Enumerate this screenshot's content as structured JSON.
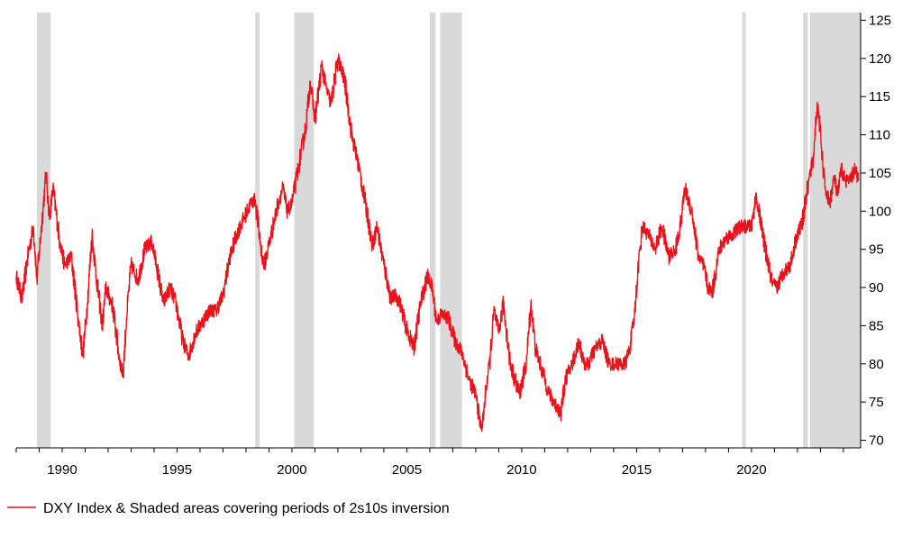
{
  "chart_data": {
    "type": "line",
    "title": "",
    "xlabel": "",
    "ylabel": "",
    "xlim": [
      1988.0,
      2024.75
    ],
    "ylim": [
      69,
      126
    ],
    "y_axis_side": "right",
    "grid": false,
    "x_ticks": [
      1990,
      1995,
      2000,
      2005,
      2010,
      2015,
      2020
    ],
    "x_tick_labels": [
      "1990",
      "1995",
      "2000",
      "2005",
      "2010",
      "2015",
      "2020"
    ],
    "y_ticks": [
      70,
      75,
      80,
      85,
      90,
      95,
      100,
      105,
      110,
      115,
      120,
      125
    ],
    "y_tick_labels": [
      "70",
      "75",
      "80",
      "85",
      "90",
      "95",
      "100",
      "105",
      "110",
      "115",
      "120",
      "125"
    ],
    "legend": {
      "placement": "bottom-left",
      "entries": [
        {
          "label": "DXY Index & Shaded areas covering periods of 2s10s inversion",
          "color": "#e8141c"
        }
      ]
    },
    "shaded_periods": [
      [
        1988.9,
        1989.5
      ],
      [
        1998.4,
        1998.6
      ],
      [
        2000.1,
        2000.95
      ],
      [
        2006.0,
        2006.25
      ],
      [
        2006.45,
        2007.4
      ],
      [
        2019.6,
        2019.75
      ],
      [
        2022.25,
        2022.45
      ],
      [
        2022.55,
        2024.75
      ]
    ],
    "shade_color": "#d9d9d9",
    "series": [
      {
        "name": "DXY Index",
        "color": "#e8141c",
        "x": [
          1988.0,
          1988.25,
          1988.5,
          1988.75,
          1988.9,
          1989.1,
          1989.3,
          1989.45,
          1989.6,
          1989.9,
          1990.1,
          1990.4,
          1990.7,
          1990.9,
          1991.1,
          1991.3,
          1991.5,
          1991.75,
          1991.9,
          1992.2,
          1992.5,
          1992.65,
          1992.8,
          1993.0,
          1993.3,
          1993.6,
          1993.9,
          1994.1,
          1994.4,
          1994.7,
          1994.95,
          1995.25,
          1995.5,
          1995.8,
          1996.1,
          1996.4,
          1996.7,
          1997.0,
          1997.3,
          1997.6,
          1997.9,
          1998.2,
          1998.4,
          1998.7,
          1998.8,
          1999.1,
          1999.4,
          1999.6,
          1999.8,
          2000.0,
          2000.3,
          2000.6,
          2000.8,
          2001.0,
          2001.3,
          2001.5,
          2001.7,
          2002.0,
          2002.3,
          2002.6,
          2002.9,
          2003.2,
          2003.5,
          2003.7,
          2004.0,
          2004.3,
          2004.5,
          2004.7,
          2004.95,
          2005.3,
          2005.6,
          2005.9,
          2006.1,
          2006.3,
          2006.5,
          2006.8,
          2007.1,
          2007.4,
          2007.7,
          2008.0,
          2008.2,
          2008.3,
          2008.45,
          2008.6,
          2008.8,
          2009.0,
          2009.2,
          2009.5,
          2009.9,
          2010.2,
          2010.4,
          2010.6,
          2010.9,
          2011.2,
          2011.5,
          2011.7,
          2011.9,
          2012.2,
          2012.5,
          2012.7,
          2012.9,
          2013.2,
          2013.5,
          2013.8,
          2014.0,
          2014.3,
          2014.5,
          2014.7,
          2014.9,
          2015.05,
          2015.25,
          2015.5,
          2015.8,
          2016.1,
          2016.4,
          2016.7,
          2016.95,
          2017.1,
          2017.4,
          2017.7,
          2017.95,
          2018.1,
          2018.3,
          2018.6,
          2018.9,
          2019.2,
          2019.5,
          2019.8,
          2020.0,
          2020.2,
          2020.35,
          2020.6,
          2020.9,
          2021.1,
          2021.4,
          2021.7,
          2021.9,
          2022.2,
          2022.5,
          2022.7,
          2022.8,
          2022.9,
          2023.05,
          2023.2,
          2023.4,
          2023.6,
          2023.75,
          2023.9,
          2024.1,
          2024.3,
          2024.5,
          2024.65
        ],
        "values": [
          91.5,
          88.5,
          94.0,
          98.0,
          91.0,
          98.0,
          105.0,
          99.0,
          103.0,
          96.0,
          93.0,
          94.0,
          86.0,
          81.0,
          88.0,
          97.0,
          91.0,
          85.0,
          90.0,
          87.5,
          80.5,
          78.5,
          86.0,
          93.0,
          91.0,
          95.0,
          96.0,
          93.0,
          88.0,
          90.0,
          88.0,
          83.0,
          81.0,
          84.0,
          85.5,
          87.0,
          87.0,
          89.0,
          94.0,
          97.0,
          99.0,
          101.0,
          101.5,
          94.0,
          93.0,
          97.0,
          101.0,
          103.0,
          100.0,
          101.0,
          106.0,
          111.0,
          117.0,
          112.0,
          119.0,
          116.0,
          114.0,
          120.0,
          117.0,
          110.0,
          106.0,
          101.0,
          95.5,
          98.0,
          93.0,
          88.5,
          89.0,
          88.0,
          85.0,
          82.0,
          88.0,
          91.5,
          90.0,
          85.5,
          86.5,
          86.0,
          83.0,
          81.5,
          78.0,
          76.0,
          72.0,
          72.0,
          77.0,
          80.0,
          87.0,
          84.0,
          88.0,
          80.0,
          76.0,
          80.0,
          88.0,
          82.0,
          79.0,
          76.0,
          74.5,
          73.5,
          78.0,
          80.0,
          83.0,
          80.0,
          80.0,
          82.0,
          83.0,
          80.0,
          80.0,
          80.0,
          80.0,
          82.0,
          86.0,
          92.0,
          98.0,
          97.0,
          95.0,
          98.0,
          94.0,
          95.0,
          99.0,
          103.0,
          100.0,
          94.0,
          92.5,
          90.0,
          89.5,
          95.0,
          96.5,
          97.0,
          98.0,
          98.0,
          98.0,
          102.0,
          99.5,
          95.0,
          90.5,
          90.0,
          92.0,
          93.0,
          96.0,
          98.5,
          104.0,
          107.0,
          112.0,
          114.0,
          108.0,
          103.0,
          101.0,
          104.5,
          102.0,
          105.5,
          104.0,
          104.0,
          105.5,
          104.0
        ]
      }
    ]
  }
}
